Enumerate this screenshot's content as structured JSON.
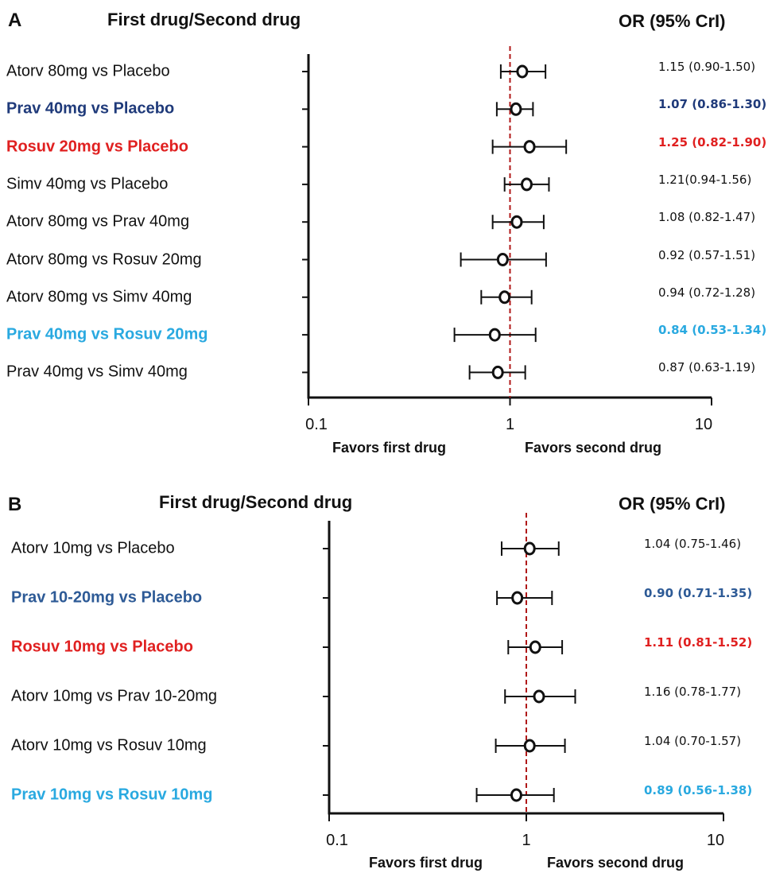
{
  "chart_data": [
    {
      "type": "forest",
      "panel_label": "A",
      "header_left": "First drug/Second drug",
      "header_right": "OR (95% CrI)",
      "x_scale": "log",
      "x_ticks": [
        0.1,
        1,
        10
      ],
      "x_tick_labels": [
        "0.1",
        "1",
        "10"
      ],
      "reference_line": 1,
      "favors_left": "Favors first drug",
      "favors_right": "Favors second drug",
      "rows": [
        {
          "label": "Atorv 80mg vs Placebo",
          "or": 1.15,
          "low": 0.9,
          "high": 1.5,
          "or_text": "1.15 (0.90-1.50)",
          "color": "#111111",
          "bold": false
        },
        {
          "label": "Prav 40mg vs Placebo",
          "or": 1.07,
          "low": 0.86,
          "high": 1.3,
          "or_text": "1.07 (0.86-1.30)",
          "color": "#1f3a7a",
          "bold": true
        },
        {
          "label": "Rosuv 20mg vs Placebo",
          "or": 1.25,
          "low": 0.82,
          "high": 1.9,
          "or_text": "1.25 (0.82-1.90)",
          "color": "#e02020",
          "bold": true
        },
        {
          "label": "Simv 40mg vs Placebo",
          "or": 1.21,
          "low": 0.94,
          "high": 1.56,
          "or_text": "1.21(0.94-1.56)",
          "color": "#111111",
          "bold": false
        },
        {
          "label": "Atorv 80mg vs Prav 40mg",
          "or": 1.08,
          "low": 0.82,
          "high": 1.47,
          "or_text": "1.08 (0.82-1.47)",
          "color": "#111111",
          "bold": false
        },
        {
          "label": "Atorv 80mg vs Rosuv 20mg",
          "or": 0.92,
          "low": 0.57,
          "high": 1.51,
          "or_text": "0.92 (0.57-1.51)",
          "color": "#111111",
          "bold": false
        },
        {
          "label": "Atorv 80mg vs Simv 40mg",
          "or": 0.94,
          "low": 0.72,
          "high": 1.28,
          "or_text": "0.94 (0.72-1.28)",
          "color": "#111111",
          "bold": false
        },
        {
          "label": "Prav 40mg vs Rosuv 20mg",
          "or": 0.84,
          "low": 0.53,
          "high": 1.34,
          "or_text": "0.84 (0.53-1.34)",
          "color": "#29a9e0",
          "bold": true
        },
        {
          "label": "Prav 40mg vs Simv 40mg",
          "or": 0.87,
          "low": 0.63,
          "high": 1.19,
          "or_text": "0.87 (0.63-1.19)",
          "color": "#111111",
          "bold": false
        }
      ]
    },
    {
      "type": "forest",
      "panel_label": "B",
      "header_left": "First drug/Second drug",
      "header_right": "OR (95% CrI)",
      "x_scale": "log",
      "x_ticks": [
        0.1,
        1,
        10
      ],
      "x_tick_labels": [
        "0.1",
        "1",
        "10"
      ],
      "reference_line": 1,
      "favors_left": "Favors first drug",
      "favors_right": "Favors second drug",
      "rows": [
        {
          "label": "Atorv 10mg vs Placebo",
          "or": 1.04,
          "low": 0.75,
          "high": 1.46,
          "or_text": "1.04 (0.75-1.46)",
          "color": "#111111",
          "bold": false
        },
        {
          "label": "Prav 10-20mg vs Placebo",
          "or": 0.9,
          "low": 0.71,
          "high": 1.35,
          "or_text": "0.90 (0.71-1.35)",
          "color": "#2d5a96",
          "bold": true
        },
        {
          "label": "Rosuv 10mg vs Placebo",
          "or": 1.11,
          "low": 0.81,
          "high": 1.52,
          "or_text": "1.11 (0.81-1.52)",
          "color": "#e02020",
          "bold": true
        },
        {
          "label": "Atorv 10mg vs Prav 10-20mg",
          "or": 1.16,
          "low": 0.78,
          "high": 1.77,
          "or_text": "1.16 (0.78-1.77)",
          "color": "#111111",
          "bold": false
        },
        {
          "label": "Atorv 10mg vs Rosuv 10mg",
          "or": 1.04,
          "low": 0.7,
          "high": 1.57,
          "or_text": "1.04 (0.70-1.57)",
          "color": "#111111",
          "bold": false
        },
        {
          "label": "Prav 10mg vs Rosuv 10mg",
          "or": 0.89,
          "low": 0.56,
          "high": 1.38,
          "or_text": "0.89 (0.56-1.38)",
          "color": "#29a9e0",
          "bold": true
        }
      ]
    }
  ]
}
